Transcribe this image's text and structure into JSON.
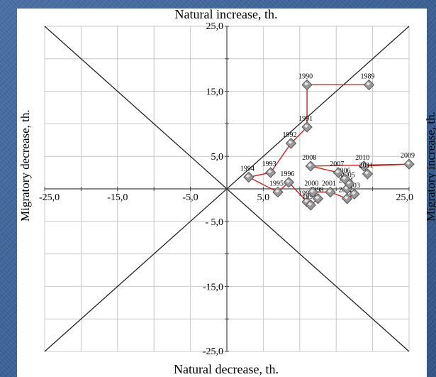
{
  "chart_data": {
    "type": "scatter",
    "title_top": "Natural increase, th.",
    "title_bottom": "Natural decrease, th.",
    "ylabel_left": "Migratory decrease, th.",
    "ylabel_right": "Migratory increase, th.",
    "xlim": [
      -25,
      25
    ],
    "ylim": [
      -25,
      25
    ],
    "x_ticks": [
      -25,
      -15,
      -5,
      5,
      25
    ],
    "x_tick_labels": [
      "-25,0",
      "-15,0",
      "-5,0",
      "5,0",
      "25,0"
    ],
    "y_ticks": [
      25,
      15,
      5,
      -5,
      -15,
      -25
    ],
    "y_tick_labels": [
      "25,0",
      "15,0",
      "5,0",
      "- 5,0",
      "-15,0",
      "-25,0"
    ],
    "grid": true,
    "diagonals": true,
    "series": [
      {
        "line_color": "#cc2222",
        "points": [
          {
            "label": "1989",
            "x": 19.5,
            "y": 16.0
          },
          {
            "label": "1990",
            "x": 11.0,
            "y": 16.0
          },
          {
            "label": "1991",
            "x": 11.0,
            "y": 9.5
          },
          {
            "label": "1992",
            "x": 8.8,
            "y": 7.0
          },
          {
            "label": "1993",
            "x": 6.0,
            "y": 2.5
          },
          {
            "label": "1994",
            "x": 3.0,
            "y": 1.8
          },
          {
            "label": "1995",
            "x": 7.0,
            "y": -0.5
          },
          {
            "label": "1996",
            "x": 8.5,
            "y": 1.0
          },
          {
            "label": "1997",
            "x": 11.0,
            "y": -2.0
          },
          {
            "label": "1999",
            "x": 11.5,
            "y": -2.5
          },
          {
            "label": "1998",
            "x": 12.5,
            "y": -1.5
          },
          {
            "label": "2000",
            "x": 11.8,
            "y": -0.5
          },
          {
            "label": "2001",
            "x": 14.2,
            "y": -0.5
          },
          {
            "label": "2002",
            "x": 16.5,
            "y": -1.5
          },
          {
            "label": "2003",
            "x": 17.5,
            "y": -0.8
          },
          {
            "label": "2004",
            "x": 16.5,
            "y": 0.0
          },
          {
            "label": "2005",
            "x": 16.8,
            "y": 0.8
          },
          {
            "label": "2006",
            "x": 16.2,
            "y": 1.5
          },
          {
            "label": "2007",
            "x": 15.3,
            "y": 2.5
          },
          {
            "label": "2008",
            "x": 11.5,
            "y": 3.5
          },
          {
            "label": "2009",
            "x": 25.0,
            "y": 3.8
          },
          {
            "label": "2010",
            "x": 18.8,
            "y": 3.5
          },
          {
            "label": "2011",
            "x": 19.3,
            "y": 2.3
          }
        ]
      }
    ]
  }
}
